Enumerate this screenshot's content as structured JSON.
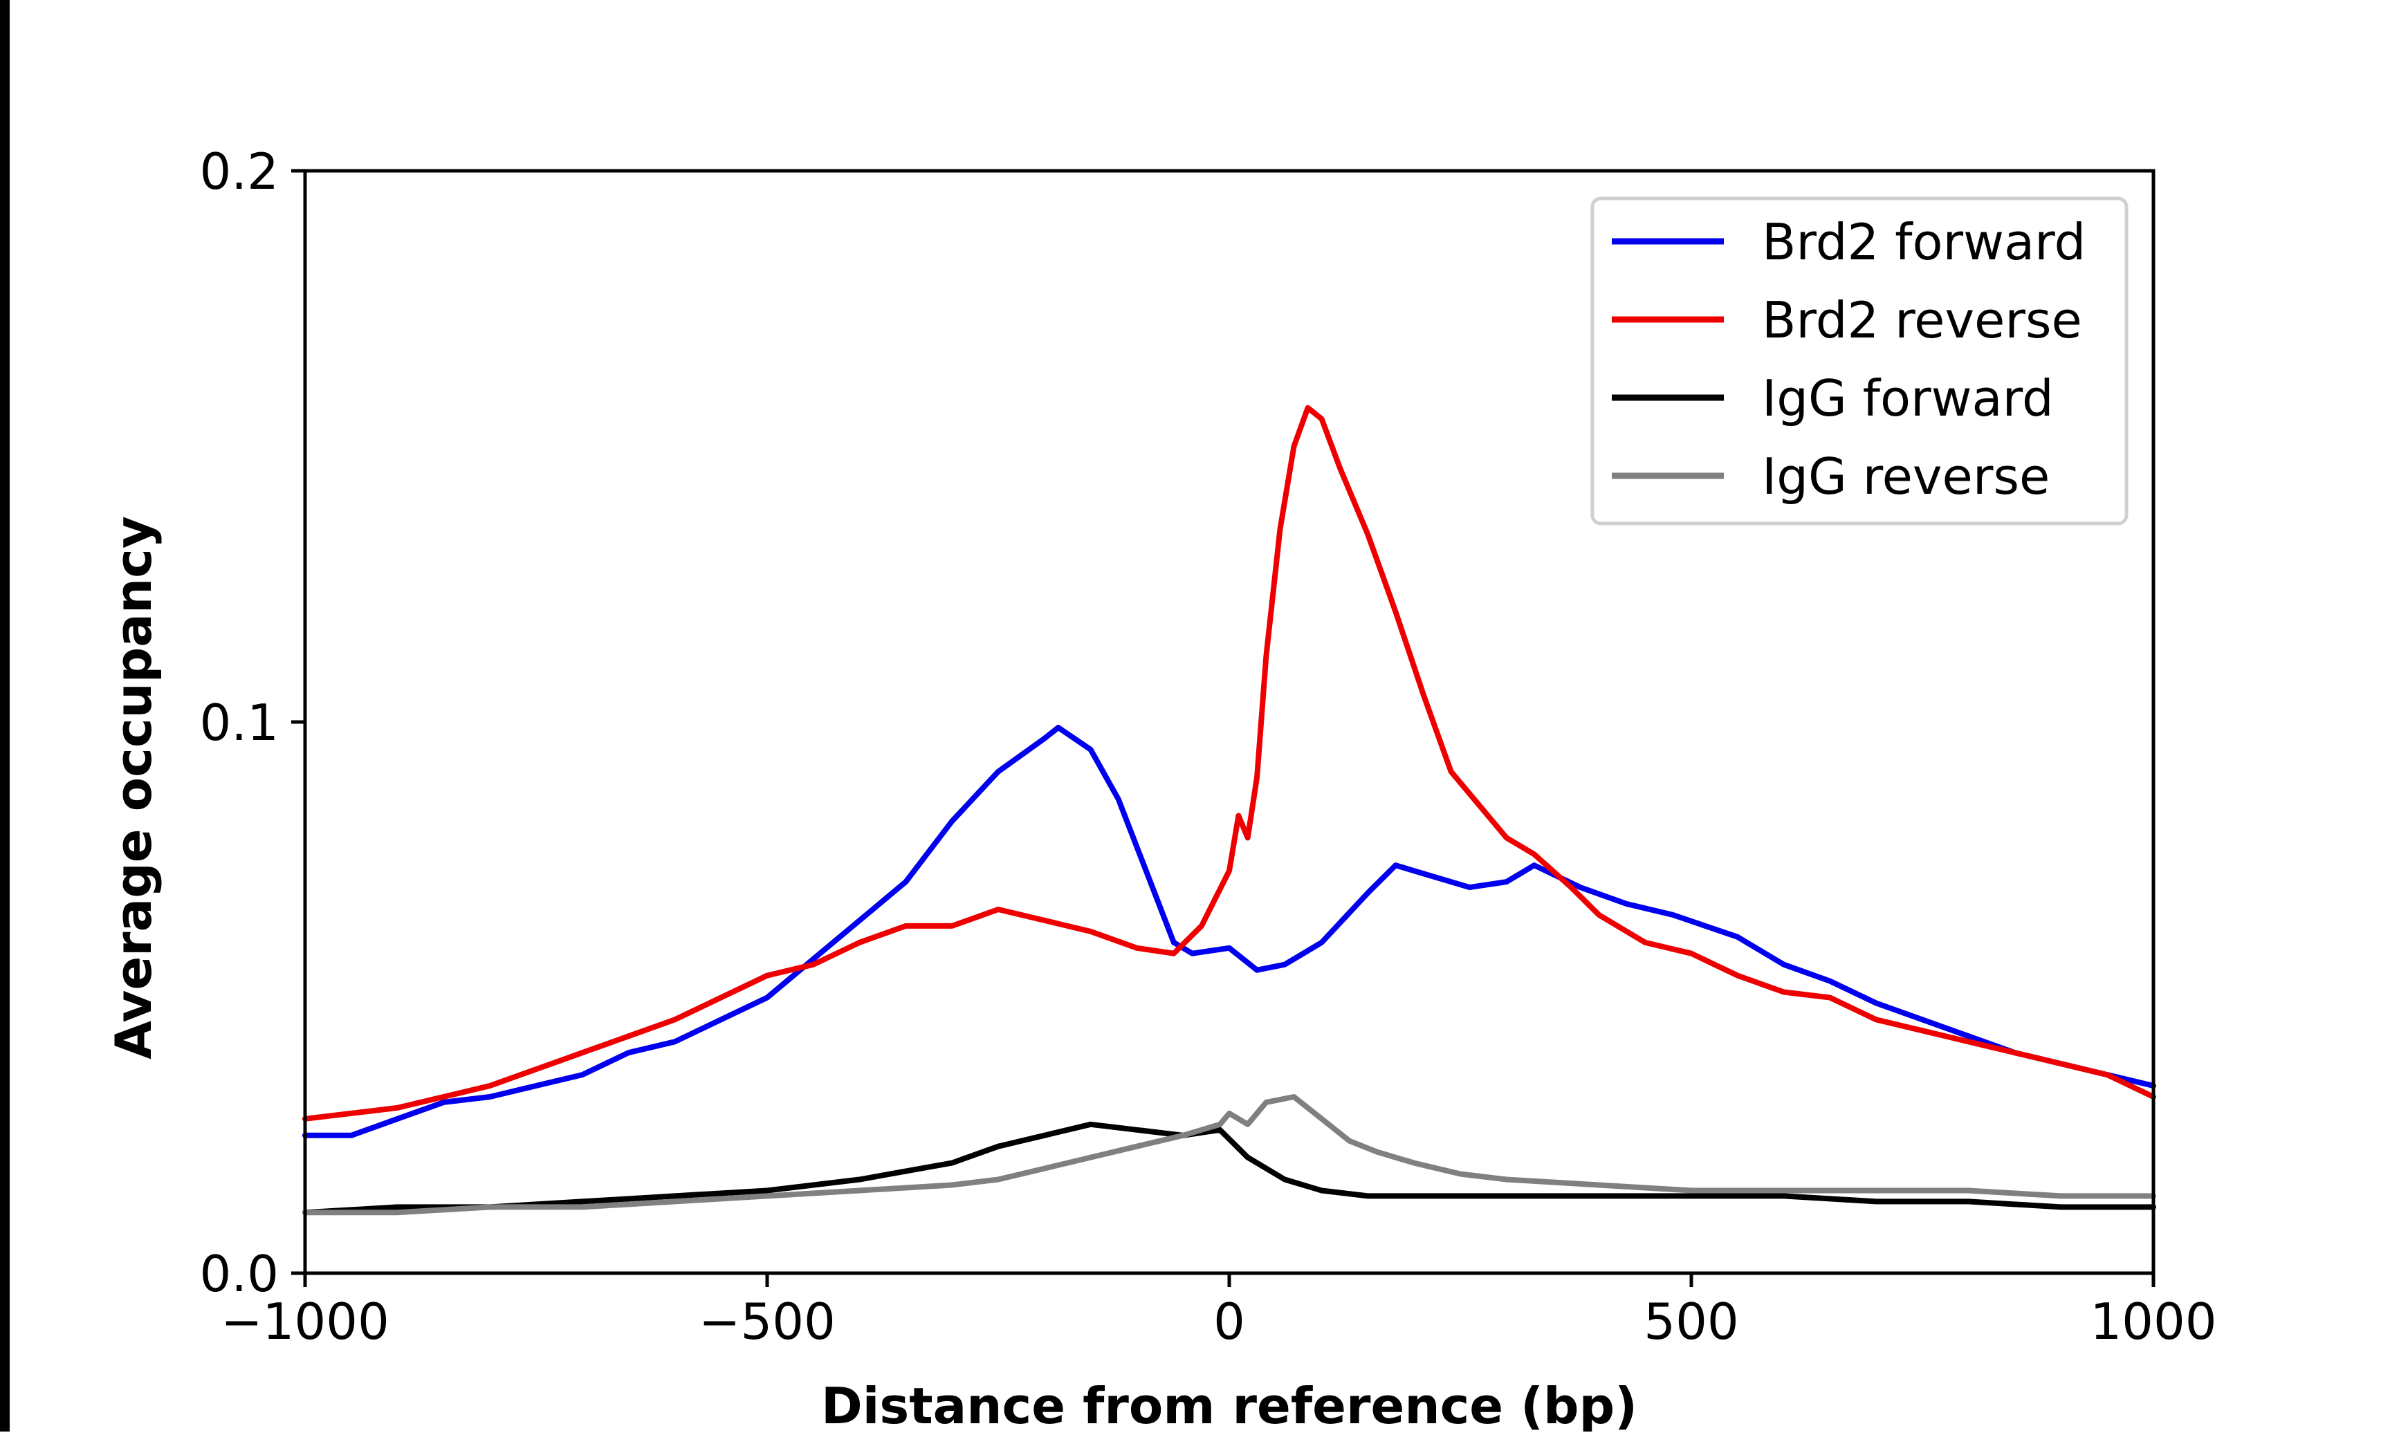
{
  "chart_data": {
    "type": "line",
    "title": "",
    "xlabel": "Distance from reference (bp)",
    "ylabel": "Average occupancy",
    "xlim": [
      -1000,
      1000
    ],
    "ylim": [
      0,
      0.2
    ],
    "xticks": [
      -1000,
      -500,
      0,
      500,
      1000
    ],
    "xtick_labels": [
      "−1000",
      "−500",
      "0",
      "500",
      "1000"
    ],
    "yticks": [
      0,
      0.1,
      0.2
    ],
    "ytick_labels": [
      "0.0",
      "0.1",
      "0.2"
    ],
    "grid": false,
    "legend_position": "top-right",
    "series": [
      {
        "name": "Brd2 forward",
        "color": "#0000ee",
        "points": [
          [
            -1000,
            0.025
          ],
          [
            -950,
            0.025
          ],
          [
            -900,
            0.028
          ],
          [
            -850,
            0.031
          ],
          [
            -800,
            0.032
          ],
          [
            -750,
            0.034
          ],
          [
            -700,
            0.036
          ],
          [
            -650,
            0.04
          ],
          [
            -600,
            0.042
          ],
          [
            -550,
            0.046
          ],
          [
            -500,
            0.05
          ],
          [
            -450,
            0.057
          ],
          [
            -400,
            0.064
          ],
          [
            -350,
            0.071
          ],
          [
            -300,
            0.082
          ],
          [
            -250,
            0.091
          ],
          [
            -200,
            0.097
          ],
          [
            -185,
            0.099
          ],
          [
            -150,
            0.095
          ],
          [
            -120,
            0.086
          ],
          [
            -90,
            0.073
          ],
          [
            -60,
            0.06
          ],
          [
            -40,
            0.058
          ],
          [
            0,
            0.059
          ],
          [
            30,
            0.055
          ],
          [
            60,
            0.056
          ],
          [
            100,
            0.06
          ],
          [
            150,
            0.069
          ],
          [
            180,
            0.074
          ],
          [
            220,
            0.072
          ],
          [
            260,
            0.07
          ],
          [
            300,
            0.071
          ],
          [
            330,
            0.074
          ],
          [
            380,
            0.07
          ],
          [
            430,
            0.067
          ],
          [
            480,
            0.065
          ],
          [
            550,
            0.061
          ],
          [
            600,
            0.056
          ],
          [
            650,
            0.053
          ],
          [
            700,
            0.049
          ],
          [
            750,
            0.046
          ],
          [
            800,
            0.043
          ],
          [
            850,
            0.04
          ],
          [
            900,
            0.038
          ],
          [
            950,
            0.036
          ],
          [
            1000,
            0.034
          ]
        ]
      },
      {
        "name": "Brd2 reverse",
        "color": "#ee0000",
        "points": [
          [
            -1000,
            0.028
          ],
          [
            -950,
            0.029
          ],
          [
            -900,
            0.03
          ],
          [
            -850,
            0.032
          ],
          [
            -800,
            0.034
          ],
          [
            -750,
            0.037
          ],
          [
            -700,
            0.04
          ],
          [
            -650,
            0.043
          ],
          [
            -600,
            0.046
          ],
          [
            -550,
            0.05
          ],
          [
            -500,
            0.054
          ],
          [
            -450,
            0.056
          ],
          [
            -400,
            0.06
          ],
          [
            -350,
            0.063
          ],
          [
            -300,
            0.063
          ],
          [
            -250,
            0.066
          ],
          [
            -200,
            0.064
          ],
          [
            -150,
            0.062
          ],
          [
            -100,
            0.059
          ],
          [
            -60,
            0.058
          ],
          [
            -30,
            0.063
          ],
          [
            0,
            0.073
          ],
          [
            10,
            0.083
          ],
          [
            20,
            0.079
          ],
          [
            30,
            0.09
          ],
          [
            40,
            0.112
          ],
          [
            55,
            0.135
          ],
          [
            70,
            0.15
          ],
          [
            85,
            0.157
          ],
          [
            100,
            0.155
          ],
          [
            120,
            0.146
          ],
          [
            150,
            0.134
          ],
          [
            180,
            0.12
          ],
          [
            210,
            0.105
          ],
          [
            240,
            0.091
          ],
          [
            270,
            0.085
          ],
          [
            300,
            0.079
          ],
          [
            330,
            0.076
          ],
          [
            370,
            0.07
          ],
          [
            400,
            0.065
          ],
          [
            450,
            0.06
          ],
          [
            500,
            0.058
          ],
          [
            550,
            0.054
          ],
          [
            600,
            0.051
          ],
          [
            650,
            0.05
          ],
          [
            700,
            0.046
          ],
          [
            750,
            0.044
          ],
          [
            800,
            0.042
          ],
          [
            850,
            0.04
          ],
          [
            900,
            0.038
          ],
          [
            950,
            0.036
          ],
          [
            1000,
            0.032
          ]
        ]
      },
      {
        "name": "IgG forward",
        "color": "#000000",
        "points": [
          [
            -1000,
            0.011
          ],
          [
            -900,
            0.012
          ],
          [
            -800,
            0.012
          ],
          [
            -700,
            0.013
          ],
          [
            -600,
            0.014
          ],
          [
            -500,
            0.015
          ],
          [
            -400,
            0.017
          ],
          [
            -300,
            0.02
          ],
          [
            -250,
            0.023
          ],
          [
            -200,
            0.025
          ],
          [
            -150,
            0.027
          ],
          [
            -100,
            0.026
          ],
          [
            -50,
            0.025
          ],
          [
            -10,
            0.026
          ],
          [
            20,
            0.021
          ],
          [
            60,
            0.017
          ],
          [
            100,
            0.015
          ],
          [
            150,
            0.014
          ],
          [
            200,
            0.014
          ],
          [
            300,
            0.014
          ],
          [
            400,
            0.014
          ],
          [
            500,
            0.014
          ],
          [
            600,
            0.014
          ],
          [
            700,
            0.013
          ],
          [
            800,
            0.013
          ],
          [
            900,
            0.012
          ],
          [
            1000,
            0.012
          ]
        ]
      },
      {
        "name": "IgG reverse",
        "color": "#808080",
        "points": [
          [
            -1000,
            0.011
          ],
          [
            -900,
            0.011
          ],
          [
            -800,
            0.012
          ],
          [
            -700,
            0.012
          ],
          [
            -600,
            0.013
          ],
          [
            -500,
            0.014
          ],
          [
            -400,
            0.015
          ],
          [
            -300,
            0.016
          ],
          [
            -250,
            0.017
          ],
          [
            -200,
            0.019
          ],
          [
            -150,
            0.021
          ],
          [
            -100,
            0.023
          ],
          [
            -50,
            0.025
          ],
          [
            -10,
            0.027
          ],
          [
            0,
            0.029
          ],
          [
            20,
            0.027
          ],
          [
            40,
            0.031
          ],
          [
            70,
            0.032
          ],
          [
            100,
            0.028
          ],
          [
            130,
            0.024
          ],
          [
            160,
            0.022
          ],
          [
            200,
            0.02
          ],
          [
            250,
            0.018
          ],
          [
            300,
            0.017
          ],
          [
            400,
            0.016
          ],
          [
            500,
            0.015
          ],
          [
            600,
            0.015
          ],
          [
            700,
            0.015
          ],
          [
            800,
            0.015
          ],
          [
            900,
            0.014
          ],
          [
            1000,
            0.014
          ]
        ]
      }
    ]
  }
}
